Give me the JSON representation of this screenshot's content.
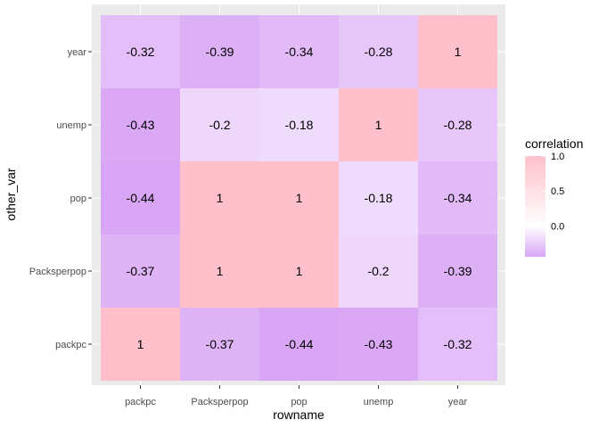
{
  "chart_data": {
    "type": "heatmap",
    "xlabel": "rowname",
    "ylabel": "other_var",
    "x_categories": [
      "packpc",
      "Packsperpop",
      "pop",
      "unemp",
      "year"
    ],
    "y_categories": [
      "packpc",
      "Packsperpop",
      "pop",
      "unemp",
      "year"
    ],
    "values": [
      [
        1,
        -0.37,
        -0.44,
        -0.43,
        -0.32
      ],
      [
        -0.37,
        1,
        1,
        -0.2,
        -0.39
      ],
      [
        -0.44,
        1,
        1,
        -0.18,
        -0.34
      ],
      [
        -0.43,
        -0.2,
        -0.18,
        1,
        -0.28
      ],
      [
        -0.32,
        -0.39,
        -0.34,
        -0.28,
        1
      ]
    ],
    "labels": [
      [
        "1",
        "-0.37",
        "-0.44",
        "-0.43",
        "-0.32"
      ],
      [
        "-0.37",
        "1",
        "1",
        "-0.2",
        "-0.39"
      ],
      [
        "-0.44",
        "1",
        "1",
        "-0.18",
        "-0.34"
      ],
      [
        "-0.43",
        "-0.2",
        "-0.18",
        "1",
        "-0.28"
      ],
      [
        "-0.32",
        "-0.39",
        "-0.34",
        "-0.28",
        "1"
      ]
    ],
    "value_range": [
      -0.44,
      1
    ],
    "legend": {
      "title": "correlation",
      "ticks": [
        1.0,
        0.5,
        0.0
      ],
      "tick_labels": [
        "1.0",
        "0.5",
        "0.0"
      ],
      "placement": "right"
    },
    "colors": {
      "low": "#d9a6f5",
      "mid": "#ffffff",
      "high": "#ffc0cb",
      "panel_background": "#ebebeb",
      "grid": "#ffffff"
    }
  }
}
